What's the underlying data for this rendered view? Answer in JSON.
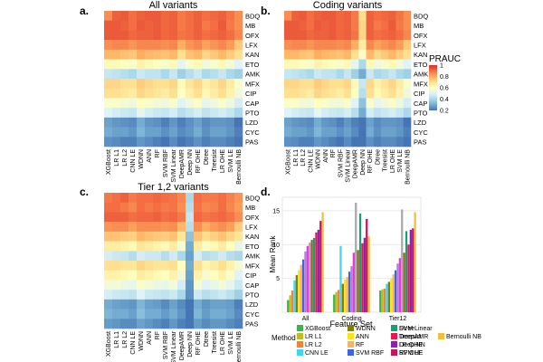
{
  "heatmap_common": {
    "drugs": [
      "BDQ",
      "MB",
      "OFX",
      "LFX",
      "KAN",
      "ETO",
      "AMK",
      "MFX",
      "CIP",
      "CAP",
      "PTO",
      "LZD",
      "CYC",
      "PAS"
    ],
    "methods": [
      "XGBoost",
      "LR L1",
      "LR L2",
      "CNN LE",
      "WDNN",
      "ANN",
      "RF",
      "SVM RBF",
      "SVM Linear",
      "DeepAMR",
      "Deep NN",
      "RF OHE",
      "Dtree",
      "Treesist",
      "LR OHE",
      "SVM LE",
      "Bernoulli NB"
    ],
    "colorbar": {
      "title": "PRAUC",
      "ticks": [
        "1",
        "0.8",
        "0.6",
        "0.4",
        "0.2"
      ],
      "colors": [
        "#d73027",
        "#f46d43",
        "#fdae61",
        "#fee090",
        "#ffffbf",
        "#e0f3f8",
        "#abd9e9",
        "#74add1",
        "#4575b4"
      ]
    }
  },
  "panel_labels": {
    "a": "a.",
    "b": "b.",
    "c": "c.",
    "d": "d."
  },
  "chart_data": [
    {
      "type": "heatmap",
      "title": "All variants",
      "value_range": [
        0.2,
        1.0
      ],
      "values": [
        [
          0.85,
          0.92,
          0.93,
          0.9,
          0.92,
          0.93,
          0.93,
          0.91,
          0.92,
          0.88,
          0.9,
          0.92,
          0.9,
          0.91,
          0.92,
          0.89,
          0.85
        ],
        [
          0.93,
          0.93,
          0.92,
          0.9,
          0.93,
          0.92,
          0.93,
          0.91,
          0.92,
          0.88,
          0.9,
          0.92,
          0.88,
          0.9,
          0.93,
          0.88,
          0.85
        ],
        [
          0.93,
          0.93,
          0.93,
          0.91,
          0.92,
          0.92,
          0.93,
          0.91,
          0.92,
          0.89,
          0.9,
          0.92,
          0.9,
          0.91,
          0.92,
          0.9,
          0.86
        ],
        [
          0.85,
          0.86,
          0.86,
          0.84,
          0.86,
          0.86,
          0.86,
          0.85,
          0.86,
          0.8,
          0.84,
          0.86,
          0.82,
          0.84,
          0.86,
          0.83,
          0.75
        ],
        [
          0.78,
          0.78,
          0.76,
          0.75,
          0.8,
          0.78,
          0.77,
          0.76,
          0.78,
          0.7,
          0.76,
          0.78,
          0.72,
          0.75,
          0.78,
          0.74,
          0.7
        ],
        [
          0.62,
          0.62,
          0.6,
          0.58,
          0.64,
          0.62,
          0.6,
          0.58,
          0.62,
          0.52,
          0.58,
          0.62,
          0.55,
          0.58,
          0.62,
          0.56,
          0.5
        ],
        [
          0.45,
          0.44,
          0.42,
          0.4,
          0.46,
          0.44,
          0.44,
          0.4,
          0.45,
          0.38,
          0.42,
          0.46,
          0.4,
          0.42,
          0.45,
          0.4,
          0.38
        ],
        [
          0.72,
          0.72,
          0.7,
          0.7,
          0.74,
          0.72,
          0.7,
          0.7,
          0.72,
          0.62,
          0.68,
          0.72,
          0.65,
          0.68,
          0.72,
          0.66,
          0.58
        ],
        [
          0.7,
          0.7,
          0.68,
          0.66,
          0.72,
          0.7,
          0.68,
          0.66,
          0.7,
          0.6,
          0.65,
          0.7,
          0.62,
          0.66,
          0.7,
          0.64,
          0.55
        ],
        [
          0.58,
          0.58,
          0.56,
          0.55,
          0.6,
          0.58,
          0.56,
          0.55,
          0.58,
          0.5,
          0.55,
          0.58,
          0.52,
          0.55,
          0.58,
          0.54,
          0.48
        ],
        [
          0.5,
          0.48,
          0.46,
          0.45,
          0.52,
          0.48,
          0.46,
          0.45,
          0.48,
          0.42,
          0.45,
          0.48,
          0.44,
          0.46,
          0.48,
          0.45,
          0.4
        ],
        [
          0.28,
          0.26,
          0.25,
          0.24,
          0.3,
          0.26,
          0.25,
          0.22,
          0.26,
          0.22,
          0.25,
          0.28,
          0.24,
          0.26,
          0.26,
          0.25,
          0.2
        ],
        [
          0.3,
          0.28,
          0.28,
          0.26,
          0.32,
          0.28,
          0.28,
          0.25,
          0.28,
          0.24,
          0.26,
          0.3,
          0.25,
          0.28,
          0.28,
          0.26,
          0.22
        ],
        [
          0.25,
          0.24,
          0.22,
          0.22,
          0.26,
          0.24,
          0.22,
          0.2,
          0.24,
          0.2,
          0.22,
          0.25,
          0.22,
          0.24,
          0.24,
          0.22,
          0.2
        ]
      ]
    },
    {
      "type": "heatmap",
      "title": "Coding variants",
      "value_range": [
        0.2,
        1.0
      ],
      "values": [
        [
          0.85,
          0.92,
          0.93,
          0.9,
          0.92,
          0.93,
          0.93,
          0.91,
          0.92,
          0.88,
          0.7,
          0.92,
          0.9,
          0.91,
          0.92,
          0.89,
          0.85
        ],
        [
          0.93,
          0.93,
          0.92,
          0.9,
          0.93,
          0.92,
          0.93,
          0.91,
          0.92,
          0.88,
          0.72,
          0.92,
          0.88,
          0.9,
          0.93,
          0.88,
          0.85
        ],
        [
          0.93,
          0.93,
          0.93,
          0.91,
          0.92,
          0.92,
          0.93,
          0.91,
          0.92,
          0.89,
          0.72,
          0.92,
          0.9,
          0.91,
          0.92,
          0.9,
          0.86
        ],
        [
          0.85,
          0.86,
          0.86,
          0.84,
          0.86,
          0.86,
          0.86,
          0.85,
          0.86,
          0.8,
          0.66,
          0.86,
          0.82,
          0.84,
          0.86,
          0.83,
          0.75
        ],
        [
          0.78,
          0.78,
          0.76,
          0.75,
          0.8,
          0.78,
          0.77,
          0.76,
          0.78,
          0.7,
          0.58,
          0.78,
          0.72,
          0.75,
          0.78,
          0.74,
          0.7
        ],
        [
          0.62,
          0.62,
          0.6,
          0.58,
          0.64,
          0.62,
          0.6,
          0.58,
          0.62,
          0.52,
          0.4,
          0.62,
          0.55,
          0.58,
          0.62,
          0.56,
          0.5
        ],
        [
          0.45,
          0.44,
          0.42,
          0.4,
          0.46,
          0.44,
          0.44,
          0.4,
          0.45,
          0.38,
          0.3,
          0.46,
          0.4,
          0.42,
          0.45,
          0.4,
          0.38
        ],
        [
          0.72,
          0.72,
          0.7,
          0.7,
          0.74,
          0.72,
          0.7,
          0.7,
          0.72,
          0.62,
          0.45,
          0.72,
          0.65,
          0.68,
          0.72,
          0.66,
          0.58
        ],
        [
          0.7,
          0.7,
          0.68,
          0.66,
          0.72,
          0.7,
          0.68,
          0.66,
          0.7,
          0.6,
          0.42,
          0.7,
          0.62,
          0.66,
          0.7,
          0.64,
          0.55
        ],
        [
          0.58,
          0.58,
          0.56,
          0.55,
          0.6,
          0.58,
          0.56,
          0.55,
          0.58,
          0.5,
          0.35,
          0.58,
          0.52,
          0.55,
          0.58,
          0.54,
          0.48
        ],
        [
          0.5,
          0.48,
          0.46,
          0.45,
          0.52,
          0.48,
          0.46,
          0.45,
          0.48,
          0.42,
          0.3,
          0.48,
          0.44,
          0.46,
          0.48,
          0.45,
          0.4
        ],
        [
          0.28,
          0.26,
          0.25,
          0.24,
          0.3,
          0.26,
          0.25,
          0.22,
          0.26,
          0.22,
          0.18,
          0.28,
          0.24,
          0.26,
          0.26,
          0.25,
          0.2
        ],
        [
          0.3,
          0.28,
          0.28,
          0.26,
          0.32,
          0.28,
          0.28,
          0.25,
          0.28,
          0.24,
          0.18,
          0.3,
          0.25,
          0.28,
          0.28,
          0.26,
          0.22
        ],
        [
          0.25,
          0.24,
          0.22,
          0.22,
          0.26,
          0.24,
          0.22,
          0.2,
          0.24,
          0.2,
          0.18,
          0.25,
          0.22,
          0.24,
          0.24,
          0.22,
          0.2
        ]
      ]
    },
    {
      "type": "heatmap",
      "title": "Tier 1,2 variants",
      "value_range": [
        0.2,
        1.0
      ],
      "values": [
        [
          0.88,
          0.9,
          0.92,
          0.88,
          0.9,
          0.9,
          0.91,
          0.9,
          0.89,
          0.86,
          0.4,
          0.9,
          0.88,
          0.88,
          0.9,
          0.87,
          0.84
        ],
        [
          0.9,
          0.9,
          0.88,
          0.86,
          0.9,
          0.88,
          0.9,
          0.88,
          0.89,
          0.85,
          0.42,
          0.89,
          0.86,
          0.87,
          0.9,
          0.86,
          0.83
        ],
        [
          0.92,
          0.92,
          0.92,
          0.9,
          0.91,
          0.91,
          0.92,
          0.9,
          0.91,
          0.88,
          0.45,
          0.91,
          0.89,
          0.9,
          0.91,
          0.89,
          0.85
        ],
        [
          0.84,
          0.85,
          0.85,
          0.82,
          0.85,
          0.85,
          0.85,
          0.84,
          0.85,
          0.78,
          0.42,
          0.85,
          0.8,
          0.83,
          0.85,
          0.82,
          0.74
        ],
        [
          0.76,
          0.76,
          0.74,
          0.73,
          0.78,
          0.76,
          0.75,
          0.74,
          0.76,
          0.68,
          0.35,
          0.76,
          0.7,
          0.73,
          0.76,
          0.72,
          0.68
        ],
        [
          0.66,
          0.66,
          0.64,
          0.62,
          0.68,
          0.66,
          0.64,
          0.62,
          0.66,
          0.56,
          0.3,
          0.66,
          0.58,
          0.62,
          0.66,
          0.6,
          0.52
        ],
        [
          0.48,
          0.46,
          0.45,
          0.42,
          0.48,
          0.46,
          0.46,
          0.42,
          0.47,
          0.4,
          0.28,
          0.48,
          0.42,
          0.44,
          0.47,
          0.42,
          0.4
        ],
        [
          0.7,
          0.7,
          0.68,
          0.68,
          0.72,
          0.7,
          0.68,
          0.68,
          0.7,
          0.6,
          0.3,
          0.7,
          0.63,
          0.66,
          0.7,
          0.64,
          0.56
        ],
        [
          0.64,
          0.64,
          0.62,
          0.6,
          0.66,
          0.64,
          0.62,
          0.6,
          0.64,
          0.55,
          0.28,
          0.64,
          0.57,
          0.6,
          0.64,
          0.58,
          0.5
        ],
        [
          0.56,
          0.56,
          0.54,
          0.53,
          0.58,
          0.56,
          0.54,
          0.53,
          0.56,
          0.48,
          0.26,
          0.56,
          0.5,
          0.53,
          0.56,
          0.52,
          0.46
        ],
        [
          0.48,
          0.46,
          0.45,
          0.44,
          0.5,
          0.46,
          0.45,
          0.44,
          0.46,
          0.4,
          0.25,
          0.46,
          0.42,
          0.44,
          0.46,
          0.43,
          0.38
        ],
        [
          0.3,
          0.28,
          0.27,
          0.26,
          0.32,
          0.28,
          0.27,
          0.24,
          0.28,
          0.24,
          0.2,
          0.3,
          0.26,
          0.28,
          0.28,
          0.27,
          0.22
        ],
        [
          0.32,
          0.3,
          0.3,
          0.28,
          0.34,
          0.3,
          0.3,
          0.27,
          0.3,
          0.26,
          0.2,
          0.32,
          0.27,
          0.3,
          0.3,
          0.28,
          0.24
        ],
        [
          0.27,
          0.26,
          0.24,
          0.24,
          0.28,
          0.26,
          0.24,
          0.22,
          0.26,
          0.22,
          0.2,
          0.27,
          0.24,
          0.26,
          0.26,
          0.24,
          0.22
        ]
      ]
    },
    {
      "type": "bar",
      "title": "",
      "xlabel": "Feature Set",
      "ylabel": "Mean Rank",
      "ylim": [
        0,
        17
      ],
      "yticks": [
        5,
        10,
        15
      ],
      "categories": [
        "All",
        "Coding",
        "Tier12"
      ],
      "legend_title": "Method",
      "series": [
        {
          "name": "XGBoost",
          "color": "#3cb44b",
          "values": [
            1.8,
            2.6,
            3.2
          ]
        },
        {
          "name": "LR L1",
          "color": "#bcbd22",
          "values": [
            2.5,
            3.0,
            3.4
          ]
        },
        {
          "name": "LR L2",
          "color": "#f58231",
          "values": [
            3.2,
            3.3,
            3.5
          ]
        },
        {
          "name": "CNN LE",
          "color": "#42d4f4",
          "values": [
            4.7,
            9.8,
            4.2
          ]
        },
        {
          "name": "WDNN",
          "color": "#808000",
          "values": [
            5.5,
            4.2,
            4.5
          ]
        },
        {
          "name": "ANN",
          "color": "#ffe119",
          "values": [
            6.2,
            4.8,
            5.0
          ]
        },
        {
          "name": "RF",
          "color": "#f7b267",
          "values": [
            7.0,
            5.2,
            5.6
          ]
        },
        {
          "name": "SVM RBF",
          "color": "#4363d8",
          "values": [
            7.8,
            6.0,
            6.2
          ]
        },
        {
          "name": "SVM Linear",
          "color": "#b07fd6",
          "values": [
            9.0,
            6.8,
            7.2
          ]
        },
        {
          "name": "DeepAMR",
          "color": "#f032e6",
          "values": [
            9.8,
            8.8,
            8.0
          ]
        },
        {
          "name": "Deep NN",
          "color": "#a9a9a9",
          "values": [
            10.3,
            16.2,
            15.2
          ]
        },
        {
          "name": "RF OHE",
          "color": "#9a6324",
          "values": [
            10.7,
            9.2,
            8.8
          ]
        },
        {
          "name": "Dtree",
          "color": "#1b9e77",
          "values": [
            11.0,
            14.6,
            12.0
          ]
        },
        {
          "name": "Treesist",
          "color": "#e6194b",
          "values": [
            11.8,
            10.2,
            10.0
          ]
        },
        {
          "name": "LR OHE",
          "color": "#911eb4",
          "values": [
            12.2,
            11.0,
            12.2
          ]
        },
        {
          "name": "SVM LE",
          "color": "#c2185b",
          "values": [
            13.5,
            13.8,
            12.4
          ]
        },
        {
          "name": "Bernoulli NB",
          "color": "#f0c03a",
          "values": [
            14.8,
            11.2,
            14.8
          ]
        }
      ]
    }
  ]
}
